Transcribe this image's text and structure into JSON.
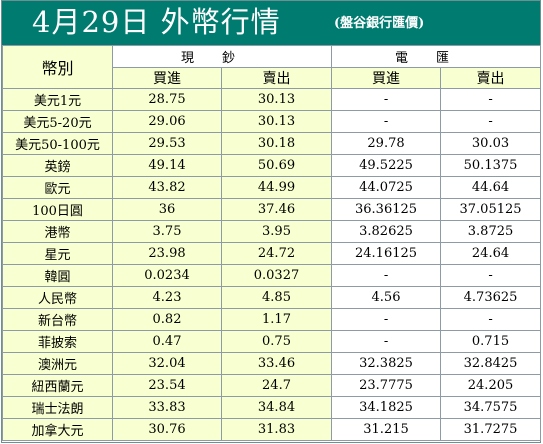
{
  "title": {
    "main": "4月29日 外幣行情",
    "source": "(盤谷銀行匯價)"
  },
  "table": {
    "currency_header": "幣別",
    "groups": [
      "現鈔",
      "電匯"
    ],
    "subheaders": [
      "買進",
      "賣出",
      "買進",
      "賣出"
    ],
    "rows": [
      {
        "name": "美元1元",
        "cash_buy": "28.75",
        "cash_sell": "30.13",
        "tt_buy": "-",
        "tt_sell": "-"
      },
      {
        "name": "美元5-20元",
        "cash_buy": "29.06",
        "cash_sell": "30.13",
        "tt_buy": "-",
        "tt_sell": "-"
      },
      {
        "name": "美元50-100元",
        "cash_buy": "29.53",
        "cash_sell": "30.18",
        "tt_buy": "29.78",
        "tt_sell": "30.03"
      },
      {
        "name": "英鎊",
        "cash_buy": "49.14",
        "cash_sell": "50.69",
        "tt_buy": "49.5225",
        "tt_sell": "50.1375"
      },
      {
        "name": "歐元",
        "cash_buy": "43.82",
        "cash_sell": "44.99",
        "tt_buy": "44.0725",
        "tt_sell": "44.64"
      },
      {
        "name": "100日圓",
        "cash_buy": "36",
        "cash_sell": "37.46",
        "tt_buy": "36.36125",
        "tt_sell": "37.05125"
      },
      {
        "name": "港幣",
        "cash_buy": "3.75",
        "cash_sell": "3.95",
        "tt_buy": "3.82625",
        "tt_sell": "3.8725"
      },
      {
        "name": "星元",
        "cash_buy": "23.98",
        "cash_sell": "24.72",
        "tt_buy": "24.16125",
        "tt_sell": "24.64"
      },
      {
        "name": "韓圓",
        "cash_buy": "0.0234",
        "cash_sell": "0.0327",
        "tt_buy": "-",
        "tt_sell": "-"
      },
      {
        "name": "人民幣",
        "cash_buy": "4.23",
        "cash_sell": "4.85",
        "tt_buy": "4.56",
        "tt_sell": "4.73625"
      },
      {
        "name": "新台幣",
        "cash_buy": "0.82",
        "cash_sell": "1.17",
        "tt_buy": "-",
        "tt_sell": "-"
      },
      {
        "name": "菲披索",
        "cash_buy": "0.47",
        "cash_sell": "0.75",
        "tt_buy": "-",
        "tt_sell": "0.715"
      },
      {
        "name": "澳洲元",
        "cash_buy": "32.04",
        "cash_sell": "33.46",
        "tt_buy": "32.3825",
        "tt_sell": "32.8425"
      },
      {
        "name": "紐西蘭元",
        "cash_buy": "23.54",
        "cash_sell": "24.7",
        "tt_buy": "23.7775",
        "tt_sell": "24.205"
      },
      {
        "name": "瑞士法朗",
        "cash_buy": "33.83",
        "cash_sell": "34.84",
        "tt_buy": "34.1825",
        "tt_sell": "34.7575"
      },
      {
        "name": "加拿大元",
        "cash_buy": "30.76",
        "cash_sell": "31.83",
        "tt_buy": "31.215",
        "tt_sell": "31.7275"
      }
    ]
  },
  "colors": {
    "title_background": "#007b70",
    "title_text": "#ffffff",
    "cell_yellow": "#f8ffd0",
    "cell_white": "#ffffff",
    "grid_line": "#8e9aa6"
  }
}
